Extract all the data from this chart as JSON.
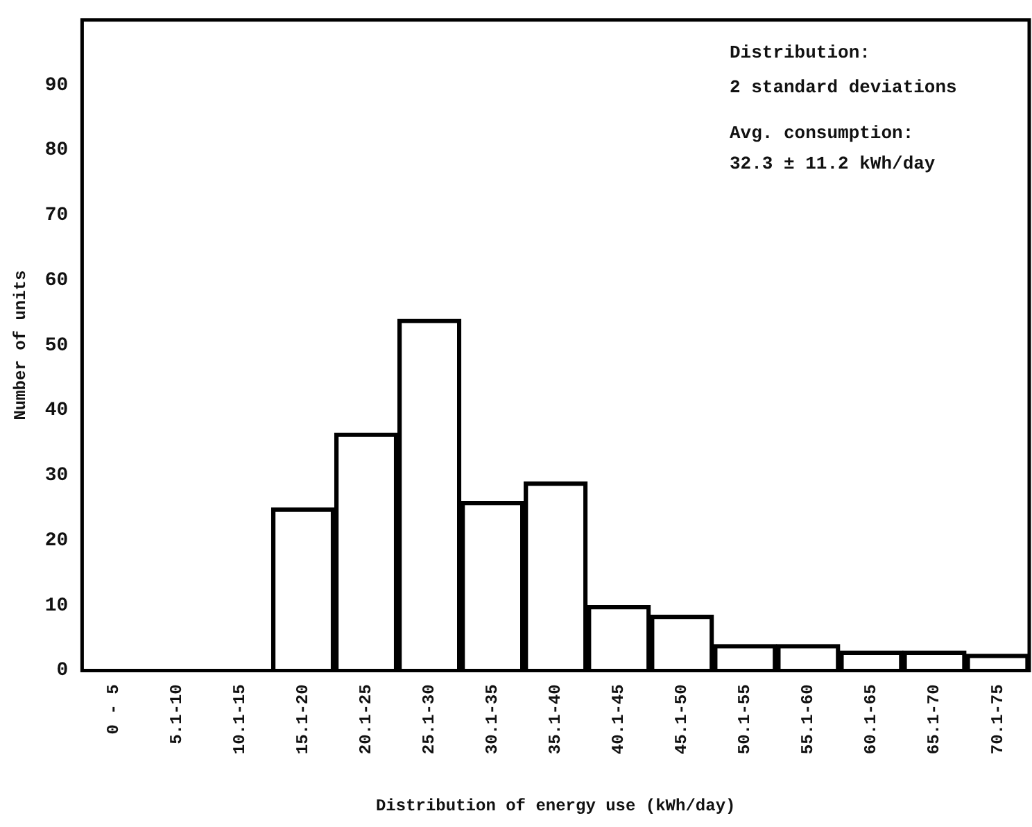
{
  "chart_data": {
    "type": "bar",
    "xlabel": "Distribution of energy use (kWh/day)",
    "ylabel": "Number of units",
    "categories": [
      "0 - 5",
      "5.1-10",
      "10.1-15",
      "15.1-20",
      "20.1-25",
      "25.1-30",
      "30.1-35",
      "35.1-40",
      "40.1-45",
      "45.1-50",
      "50.1-55",
      "55.1-60",
      "60.1-65",
      "65.1-70",
      "70.1-75"
    ],
    "values": [
      0,
      0,
      0,
      25,
      36.5,
      54,
      26,
      29,
      10,
      8.5,
      4,
      4,
      3,
      3,
      2.5
    ],
    "color": "#000000",
    "ylim": [
      0,
      100
    ],
    "yticks": [
      0,
      10,
      20,
      30,
      40,
      50,
      60,
      70,
      80,
      90
    ],
    "grid": false,
    "legend": false,
    "annotations": [
      "Distribution:",
      "2 standard deviations",
      "Avg. consumption:",
      "32.3 ± 11.2 kWh/day"
    ]
  }
}
